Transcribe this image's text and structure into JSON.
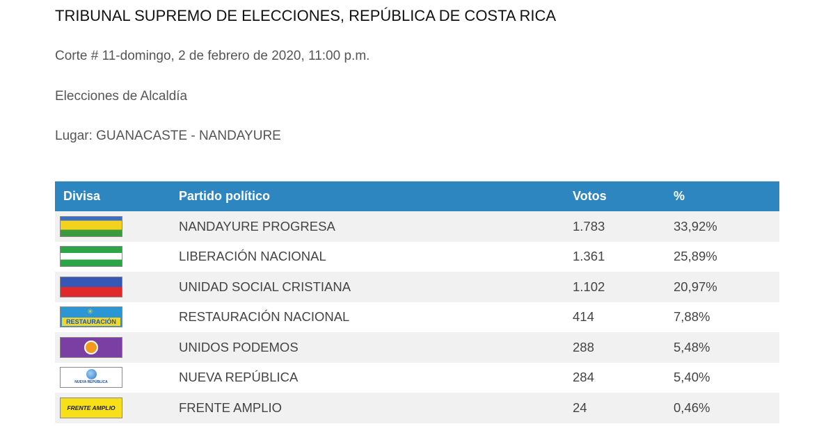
{
  "header": {
    "title": "TRIBUNAL SUPREMO DE ELECCIONES, REPÚBLICA DE COSTA RICA",
    "corte": "Corte # 11-domingo, 2 de febrero de 2020, 11:00 p.m.",
    "election": "Elecciones de Alcaldía",
    "place": "Lugar: GUANACASTE - NANDAYURE"
  },
  "table": {
    "headers": {
      "flag": "Divisa",
      "party": "Partido político",
      "votes": "Votos",
      "percent": "%"
    },
    "rows": [
      {
        "party": "NANDAYURE PROGRESA",
        "votes": "1.783",
        "percent": "33,92%",
        "flag_icon": "flag-blue-yellow-green-icon"
      },
      {
        "party": "LIBERACIÓN NACIONAL",
        "votes": "1.361",
        "percent": "25,89%",
        "flag_icon": "flag-green-white-green-icon"
      },
      {
        "party": "UNIDAD SOCIAL CRISTIANA",
        "votes": "1.102",
        "percent": "20,97%",
        "flag_icon": "flag-blue-red-icon"
      },
      {
        "party": "RESTAURACIÓN NACIONAL",
        "votes": "414",
        "percent": "7,88%",
        "flag_icon": "flag-restauracion-icon",
        "flag_text": "RESTAURACIÓN"
      },
      {
        "party": "UNIDOS PODEMOS",
        "votes": "288",
        "percent": "5,48%",
        "flag_icon": "flag-unidos-podemos-icon"
      },
      {
        "party": "NUEVA REPÚBLICA",
        "votes": "284",
        "percent": "5,40%",
        "flag_icon": "flag-nueva-republica-icon",
        "flag_text": "NUEVA REPÚBLICA"
      },
      {
        "party": "FRENTE AMPLIO",
        "votes": "24",
        "percent": "0,46%",
        "flag_icon": "flag-frente-amplio-icon",
        "flag_text": "FRENTE AMPLIO"
      }
    ]
  },
  "colors": {
    "header_bg": "#2e86c1",
    "header_text": "#ffffff",
    "row_alt_bg": "#f1f1f1"
  }
}
